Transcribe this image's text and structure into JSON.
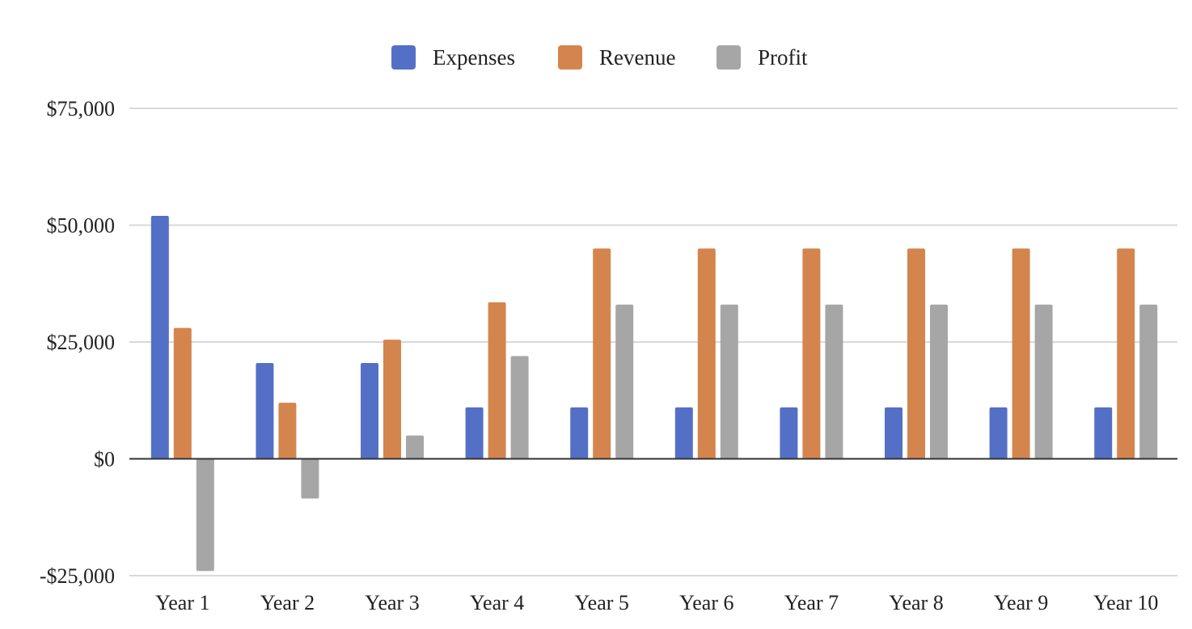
{
  "chart_data": {
    "type": "bar",
    "categories": [
      "Year 1",
      "Year 2",
      "Year 3",
      "Year 4",
      "Year 5",
      "Year 6",
      "Year 7",
      "Year 8",
      "Year 9",
      "Year 10"
    ],
    "series": [
      {
        "name": "Expenses",
        "color": "#5470c6",
        "values": [
          52000,
          20500,
          20500,
          11000,
          11000,
          11000,
          11000,
          11000,
          11000,
          11000
        ]
      },
      {
        "name": "Revenue",
        "color": "#d4854e",
        "values": [
          28000,
          12000,
          25500,
          33500,
          45000,
          45000,
          45000,
          45000,
          45000,
          45000
        ]
      },
      {
        "name": "Profit",
        "color": "#a6a6a6",
        "values": [
          -24000,
          -8500,
          5000,
          22000,
          33000,
          33000,
          33000,
          33000,
          33000,
          33000
        ]
      }
    ],
    "y_ticks": [
      {
        "value": 75000,
        "label": "$75,000"
      },
      {
        "value": 50000,
        "label": "$50,000"
      },
      {
        "value": 25000,
        "label": "$25,000"
      },
      {
        "value": 0,
        "label": "$0"
      },
      {
        "value": -25000,
        "label": "-$25,000"
      }
    ],
    "ylim": [
      -25000,
      75000
    ],
    "title": "",
    "xlabel": "",
    "ylabel": "",
    "grid": true,
    "legend_position": "top-center"
  }
}
